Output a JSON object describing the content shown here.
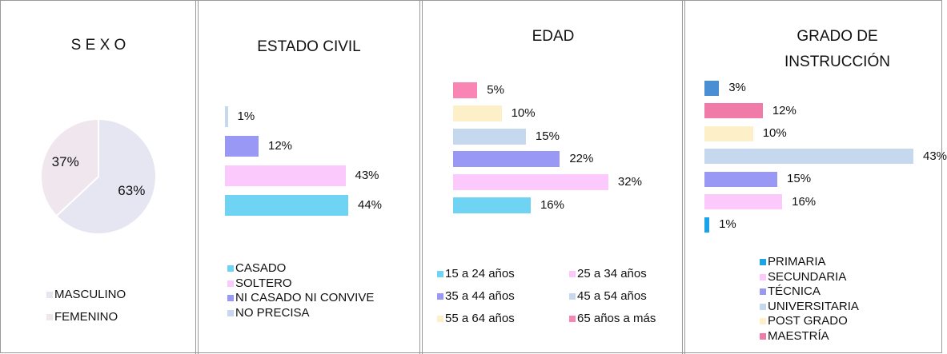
{
  "chart_data": [
    {
      "type": "pie",
      "title": "S E X O",
      "categories": [
        "MASCULINO",
        "FEMENINO"
      ],
      "values": [
        63,
        37
      ],
      "value_labels": [
        "63%",
        "37%"
      ],
      "colors": [
        "#e6e6f2",
        "#efe6ee"
      ]
    },
    {
      "type": "bar",
      "orientation": "horizontal",
      "title": "ESTADO CIVIL",
      "categories": [
        "CASADO",
        "SOLTERO",
        "NI CASADO NI CONVIVE",
        "NO PRECISA"
      ],
      "values": [
        44,
        43,
        12,
        1
      ],
      "value_labels": [
        "44%",
        "43%",
        "12%",
        "1%"
      ],
      "colors": [
        "#6fd3f3",
        "#fbc9fb",
        "#9999f5",
        "#c5d8ee"
      ]
    },
    {
      "type": "bar",
      "orientation": "horizontal",
      "title": "EDAD",
      "categories": [
        "15 a 24 años",
        "25 a 34 años",
        "35 a 44 años",
        "45 a 54 años",
        "55 a 64 años",
        "65 años a más"
      ],
      "values": [
        16,
        32,
        22,
        15,
        10,
        5
      ],
      "value_labels": [
        "16%",
        "32%",
        "22%",
        "15%",
        "10%",
        "5%"
      ],
      "colors": [
        "#6fd3f3",
        "#fbc9fb",
        "#9999f5",
        "#c5d8ee",
        "#fdefc8",
        "#f985b5"
      ]
    },
    {
      "type": "bar",
      "orientation": "horizontal",
      "title": "GRADO DE INSTRUCCIÓN",
      "categories": [
        "PRIMARIA",
        "SECUNDARIA",
        "TÉCNICA",
        "UNIVERSITARIA",
        "POST GRADO",
        "MAESTRÍA",
        null
      ],
      "values": [
        1,
        16,
        15,
        43,
        10,
        12,
        3
      ],
      "value_labels": [
        "1%",
        "16%",
        "15%",
        "43%",
        "10%",
        "12%",
        "3%"
      ],
      "colors": [
        "#1aa3e8",
        "#fbc9fb",
        "#9999f5",
        "#c5d8ee",
        "#fdefc8",
        "#f07aa8",
        "#4a8fd4"
      ]
    }
  ]
}
